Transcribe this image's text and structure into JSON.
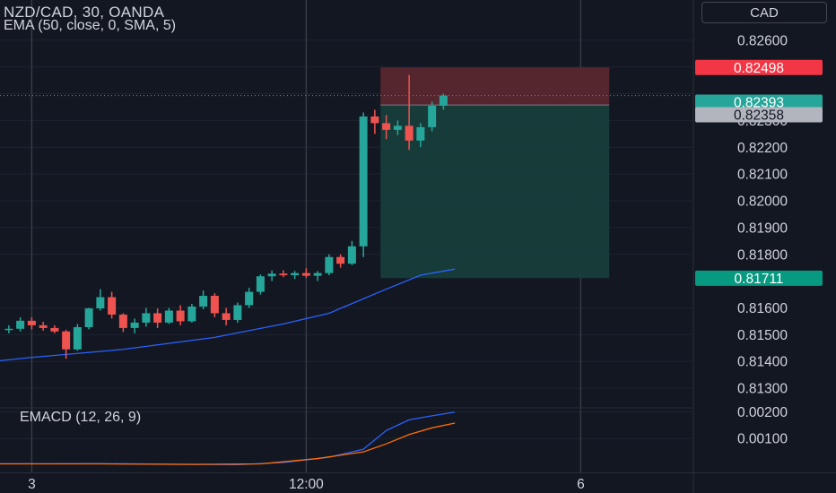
{
  "header": {
    "symbol_title": "NZD/CAD, 30, OANDA",
    "indicator_title": "EMA (50, close, 0, SMA, 5)",
    "currency": "CAD"
  },
  "macd_panel": {
    "title": "EMACD (12, 26, 9)"
  },
  "colors": {
    "background": "#131722",
    "grid": "#1f2330",
    "up": "#26a69a",
    "down": "#ef5350",
    "ema": "#2962ff",
    "signal": "#ff6d00",
    "text": "#d1d4dc",
    "stop_zone": "#5a2730",
    "target_zone": "#163d3b"
  },
  "chart_data": [
    {
      "type": "candlestick",
      "title": "NZD/CAD, 30, OANDA",
      "indicator": "EMA (50, close, 0, SMA, 5)",
      "ylim": [
        0.8123,
        0.8275
      ],
      "yticks": [
        "0.82600",
        "0.82300",
        "0.82200",
        "0.82100",
        "0.82000",
        "0.81900",
        "0.81800",
        "0.81600",
        "0.81500",
        "0.81400",
        "0.81300"
      ],
      "xticks": [
        {
          "label": "3",
          "bar": 2.5
        },
        {
          "label": "12:00",
          "bar": 26.5
        },
        {
          "label": "6",
          "bar": 50.5
        }
      ],
      "candles": [
        {
          "o": 0.81518,
          "h": 0.81535,
          "l": 0.81505,
          "c": 0.81522
        },
        {
          "o": 0.81522,
          "h": 0.81565,
          "l": 0.81512,
          "c": 0.81552
        },
        {
          "o": 0.81552,
          "h": 0.81565,
          "l": 0.8152,
          "c": 0.81535
        },
        {
          "o": 0.81535,
          "h": 0.81548,
          "l": 0.81515,
          "c": 0.81525
        },
        {
          "o": 0.81525,
          "h": 0.81535,
          "l": 0.81505,
          "c": 0.81512
        },
        {
          "o": 0.81512,
          "h": 0.81518,
          "l": 0.8141,
          "c": 0.81445
        },
        {
          "o": 0.81445,
          "h": 0.8154,
          "l": 0.8144,
          "c": 0.81528
        },
        {
          "o": 0.81528,
          "h": 0.816,
          "l": 0.8152,
          "c": 0.81598
        },
        {
          "o": 0.81598,
          "h": 0.8167,
          "l": 0.8159,
          "c": 0.8164
        },
        {
          "o": 0.8164,
          "h": 0.8166,
          "l": 0.8156,
          "c": 0.81575
        },
        {
          "o": 0.81575,
          "h": 0.8158,
          "l": 0.8151,
          "c": 0.81525
        },
        {
          "o": 0.81525,
          "h": 0.8156,
          "l": 0.81505,
          "c": 0.81545
        },
        {
          "o": 0.81545,
          "h": 0.816,
          "l": 0.8153,
          "c": 0.8158
        },
        {
          "o": 0.8158,
          "h": 0.81598,
          "l": 0.81525,
          "c": 0.81545
        },
        {
          "o": 0.81545,
          "h": 0.816,
          "l": 0.8154,
          "c": 0.8159
        },
        {
          "o": 0.8159,
          "h": 0.8161,
          "l": 0.81535,
          "c": 0.8155
        },
        {
          "o": 0.8155,
          "h": 0.81615,
          "l": 0.81545,
          "c": 0.81605
        },
        {
          "o": 0.81605,
          "h": 0.81665,
          "l": 0.81595,
          "c": 0.81645
        },
        {
          "o": 0.81645,
          "h": 0.81655,
          "l": 0.81565,
          "c": 0.8158
        },
        {
          "o": 0.8158,
          "h": 0.816,
          "l": 0.81535,
          "c": 0.81555
        },
        {
          "o": 0.81555,
          "h": 0.8162,
          "l": 0.81545,
          "c": 0.8161
        },
        {
          "o": 0.8161,
          "h": 0.81675,
          "l": 0.816,
          "c": 0.8166
        },
        {
          "o": 0.8166,
          "h": 0.81725,
          "l": 0.8165,
          "c": 0.81718
        },
        {
          "o": 0.81718,
          "h": 0.8174,
          "l": 0.817,
          "c": 0.81728
        },
        {
          "o": 0.81728,
          "h": 0.8174,
          "l": 0.81715,
          "c": 0.81722
        },
        {
          "o": 0.81722,
          "h": 0.81738,
          "l": 0.81708,
          "c": 0.8173
        },
        {
          "o": 0.8173,
          "h": 0.81748,
          "l": 0.81712,
          "c": 0.8172
        },
        {
          "o": 0.8172,
          "h": 0.81738,
          "l": 0.817,
          "c": 0.8173
        },
        {
          "o": 0.8173,
          "h": 0.818,
          "l": 0.81722,
          "c": 0.8179
        },
        {
          "o": 0.8179,
          "h": 0.818,
          "l": 0.8175,
          "c": 0.81765
        },
        {
          "o": 0.81765,
          "h": 0.8185,
          "l": 0.8176,
          "c": 0.8183
        },
        {
          "o": 0.8183,
          "h": 0.8233,
          "l": 0.8179,
          "c": 0.82315
        },
        {
          "o": 0.82315,
          "h": 0.8234,
          "l": 0.8225,
          "c": 0.8229
        },
        {
          "o": 0.8229,
          "h": 0.8232,
          "l": 0.8223,
          "c": 0.82265
        },
        {
          "o": 0.82265,
          "h": 0.823,
          "l": 0.82245,
          "c": 0.8228
        },
        {
          "o": 0.8228,
          "h": 0.8247,
          "l": 0.8219,
          "c": 0.82225
        },
        {
          "o": 0.82225,
          "h": 0.8229,
          "l": 0.822,
          "c": 0.82275
        },
        {
          "o": 0.82275,
          "h": 0.8237,
          "l": 0.8226,
          "c": 0.82355
        },
        {
          "o": 0.82355,
          "h": 0.824,
          "l": 0.8234,
          "c": 0.82393
        }
      ],
      "ema": [
        {
          "bar": -6,
          "v": 0.8138
        },
        {
          "bar": 2,
          "v": 0.81415
        },
        {
          "bar": 10,
          "v": 0.81445
        },
        {
          "bar": 18,
          "v": 0.8149
        },
        {
          "bar": 24,
          "v": 0.8154
        },
        {
          "bar": 28,
          "v": 0.8158
        },
        {
          "bar": 33,
          "v": 0.8167
        },
        {
          "bar": 36,
          "v": 0.81722
        },
        {
          "bar": 39,
          "v": 0.81745
        }
      ],
      "position": {
        "type": "short",
        "entry": 0.82358,
        "stop": 0.82498,
        "target": 0.81711,
        "start_bar": 33,
        "end_bar": 53
      },
      "current_price": 0.82393,
      "price_labels": [
        {
          "value": 0.82498,
          "text": "0.82498",
          "bg": "#f23645",
          "fg": "#ffffff"
        },
        {
          "value": 0.82393,
          "text": "0.82393",
          "bg": "#26a69a",
          "fg": "#ffffff"
        },
        {
          "value": 0.82358,
          "text": "0.82358",
          "bg": "#b2b5be",
          "fg": "#131722"
        },
        {
          "value": 0.81711,
          "text": "0.81711",
          "bg": "#089981",
          "fg": "#ffffff"
        }
      ]
    },
    {
      "type": "line",
      "title": "EMACD (12, 26, 9)",
      "ylim": [
        0.0,
        0.0022
      ],
      "yticks": [
        "0.00200",
        "0.00100"
      ],
      "series": [
        {
          "color": "#2962ff",
          "points": [
            {
              "bar": -6,
              "v": 5e-05
            },
            {
              "bar": 8,
              "v": 6e-05
            },
            {
              "bar": 14,
              "v": 4e-05
            },
            {
              "bar": 20,
              "v": 2e-05
            },
            {
              "bar": 24,
              "v": 0.0001
            },
            {
              "bar": 28,
              "v": 0.0003
            },
            {
              "bar": 31,
              "v": 0.0006
            },
            {
              "bar": 33,
              "v": 0.0013
            },
            {
              "bar": 35,
              "v": 0.0017
            },
            {
              "bar": 37,
              "v": 0.00185
            },
            {
              "bar": 39,
              "v": 0.00199
            }
          ]
        },
        {
          "color": "#ff6d00",
          "points": [
            {
              "bar": -6,
              "v": 5e-05
            },
            {
              "bar": 8,
              "v": 5e-05
            },
            {
              "bar": 16,
              "v": 3e-05
            },
            {
              "bar": 22,
              "v": 5e-05
            },
            {
              "bar": 27,
              "v": 0.00025
            },
            {
              "bar": 31,
              "v": 0.0005
            },
            {
              "bar": 33,
              "v": 0.0008
            },
            {
              "bar": 35,
              "v": 0.00115
            },
            {
              "bar": 37,
              "v": 0.0014
            },
            {
              "bar": 39,
              "v": 0.00158
            }
          ]
        }
      ]
    }
  ]
}
